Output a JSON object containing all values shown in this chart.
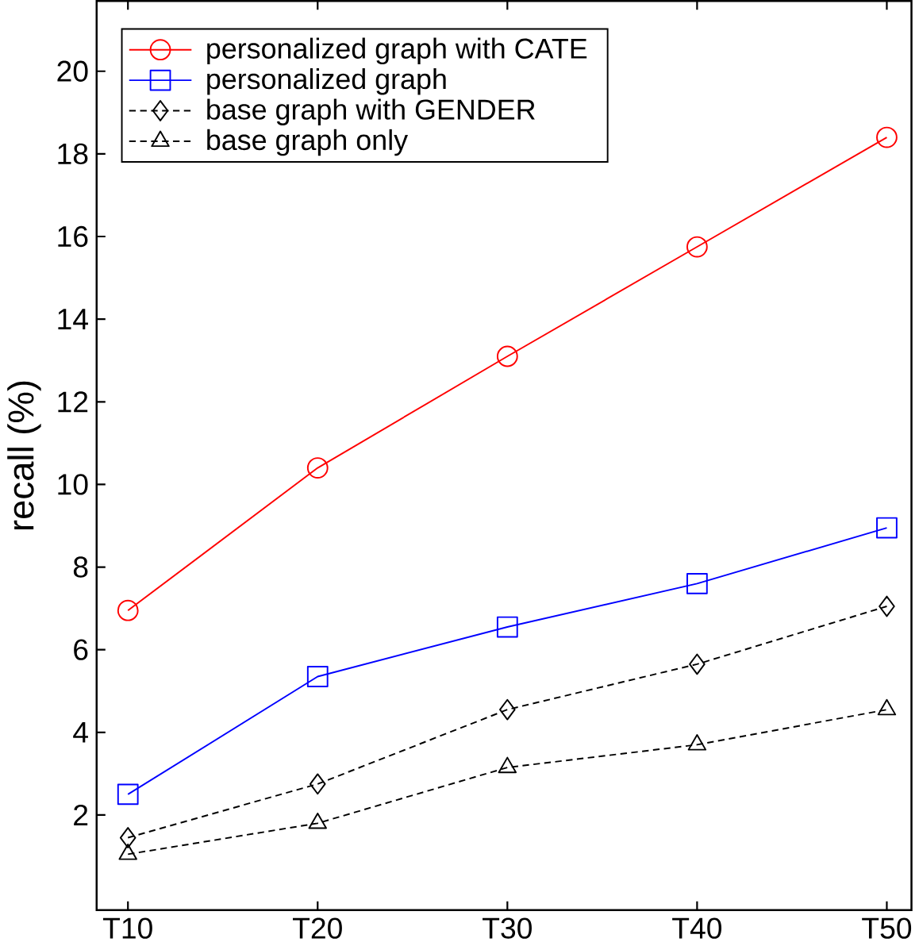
{
  "chart_data": {
    "type": "line",
    "ylabel": "recall (%)",
    "categories": [
      "T10",
      "T20",
      "T30",
      "T40",
      "T50"
    ],
    "series": [
      {
        "name": "personalized graph with CATE",
        "color": "#ff0000",
        "marker": "circle",
        "line_style": "solid",
        "values": [
          6.95,
          10.4,
          13.1,
          15.75,
          18.4
        ]
      },
      {
        "name": "personalized graph",
        "color": "#0000ff",
        "marker": "square",
        "line_style": "solid",
        "values": [
          2.5,
          5.35,
          6.55,
          7.6,
          8.95
        ]
      },
      {
        "name": "base graph with GENDER",
        "color": "#000000",
        "marker": "diamond",
        "line_style": "dashed",
        "values": [
          1.45,
          2.75,
          4.55,
          5.65,
          7.05
        ]
      },
      {
        "name": "base graph only",
        "color": "#000000",
        "marker": "triangle",
        "line_style": "dashed",
        "values": [
          1.05,
          1.8,
          3.15,
          3.7,
          4.55
        ]
      }
    ],
    "ylim": [
      -0.3,
      21.7
    ],
    "yticks": [
      2,
      4,
      6,
      8,
      10,
      12,
      14,
      16,
      18,
      20
    ],
    "legend": "top left",
    "grid": false
  }
}
